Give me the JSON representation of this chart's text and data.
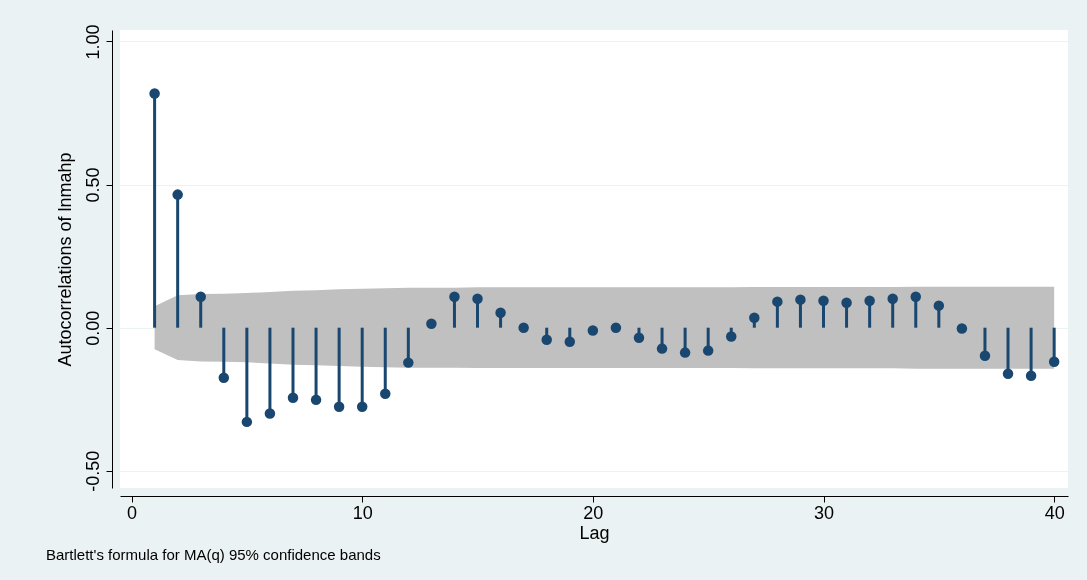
{
  "chart_data": {
    "type": "lollipop",
    "xlabel": "Lag",
    "ylabel": "Autocorrelations of lnmahp",
    "annotations": [
      "Bartlett's formula for MA(q) 95% confidence bands"
    ],
    "x": [
      1,
      2,
      3,
      4,
      5,
      6,
      7,
      8,
      9,
      10,
      11,
      12,
      13,
      14,
      15,
      16,
      17,
      18,
      19,
      20,
      21,
      22,
      23,
      24,
      25,
      26,
      27,
      28,
      29,
      30,
      31,
      32,
      33,
      34,
      35,
      36,
      37,
      38,
      39,
      40
    ],
    "series": [
      {
        "color": "#1a476f",
        "values": [
          0.818,
          0.465,
          0.108,
          -0.175,
          -0.329,
          -0.3,
          -0.245,
          -0.252,
          -0.276,
          -0.276,
          -0.231,
          -0.122,
          0.014,
          0.108,
          0.101,
          0.052,
          0.0,
          -0.042,
          -0.049,
          -0.01,
          0.0,
          -0.035,
          -0.073,
          -0.087,
          -0.08,
          -0.031,
          0.035,
          0.091,
          0.098,
          0.094,
          0.087,
          0.094,
          0.101,
          0.108,
          0.077,
          -0.003,
          -0.098,
          -0.161,
          -0.168,
          -0.119
        ],
        "lower": [
          -0.075,
          -0.113,
          -0.118,
          -0.119,
          -0.121,
          -0.125,
          -0.129,
          -0.131,
          -0.134,
          -0.136,
          -0.138,
          -0.14,
          -0.14,
          -0.14,
          -0.141,
          -0.141,
          -0.141,
          -0.141,
          -0.141,
          -0.141,
          -0.141,
          -0.141,
          -0.141,
          -0.141,
          -0.141,
          -0.141,
          -0.142,
          -0.142,
          -0.142,
          -0.142,
          -0.142,
          -0.142,
          -0.142,
          -0.143,
          -0.143,
          -0.143,
          -0.143,
          -0.143,
          -0.143,
          -0.143
        ],
        "upper": [
          0.075,
          0.113,
          0.118,
          0.119,
          0.121,
          0.125,
          0.129,
          0.131,
          0.134,
          0.136,
          0.138,
          0.14,
          0.14,
          0.14,
          0.141,
          0.141,
          0.141,
          0.141,
          0.141,
          0.141,
          0.141,
          0.141,
          0.141,
          0.141,
          0.141,
          0.141,
          0.142,
          0.142,
          0.142,
          0.142,
          0.142,
          0.142,
          0.142,
          0.143,
          0.143,
          0.143,
          0.143,
          0.143,
          0.143,
          0.143
        ]
      }
    ],
    "xlim": [
      -0.5,
      40.6
    ],
    "ylim": [
      -0.56,
      1.04
    ],
    "xticks": [
      0,
      10,
      20,
      30,
      40
    ],
    "yticks": [
      {
        "value": 1,
        "label": "1.00"
      },
      {
        "value": 0.5,
        "label": "0.50"
      },
      {
        "value": 0,
        "label": "0.00"
      },
      {
        "value": -0.5,
        "label": "-0.50"
      }
    ],
    "grid": "y",
    "marker": "circle"
  }
}
